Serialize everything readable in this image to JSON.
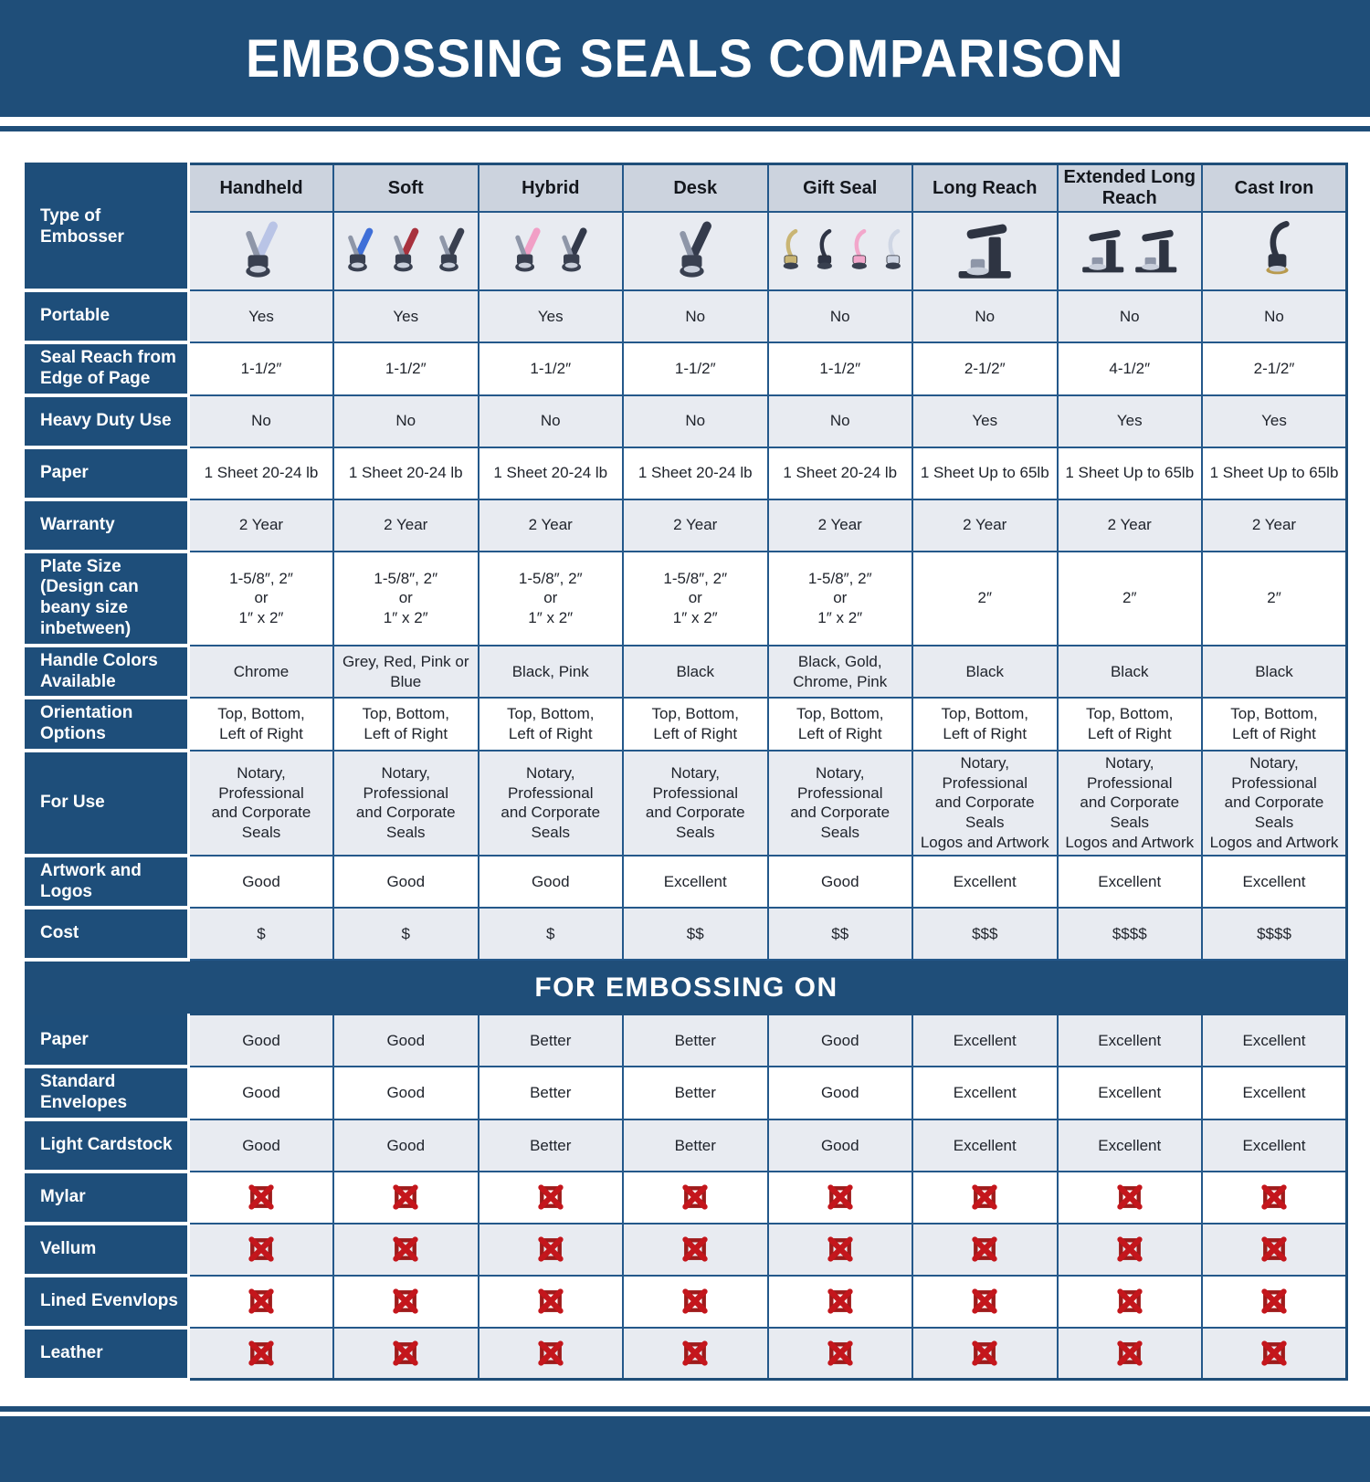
{
  "title": "EMBOSSING SEALS COMPARISON",
  "colors": {
    "dark_blue": "#1f4e79",
    "light_row": "#e8ebf1",
    "header_gray": "#ccd3de",
    "x_red": "#c4161c",
    "x_dark_red": "#9e1b1b"
  },
  "chart_data": {
    "type": "table",
    "title": "EMBOSSING SEALS COMPARISON",
    "corner_label": "Type of Embosser",
    "banner": "FOR EMBOSSING ON",
    "x_icon_name": "red-x-icon",
    "columns": [
      {
        "name": "Handheld",
        "shape": "plier",
        "variants": [
          "#b9c4e6"
        ]
      },
      {
        "name": "Soft",
        "shape": "plier",
        "variants": [
          "#3f6fd8",
          "#a8323e",
          "#3a4050"
        ]
      },
      {
        "name": "Hybrid",
        "shape": "plier",
        "variants": [
          "#f19fc6",
          "#32394a"
        ]
      },
      {
        "name": "Desk",
        "shape": "plier",
        "variants": [
          "#343b4c"
        ]
      },
      {
        "name": "Gift Seal",
        "shape": "seal",
        "variants": [
          "#c9b574",
          "#2f3546",
          "#f2a7cb",
          "#cfd6e4"
        ]
      },
      {
        "name": "Long Reach",
        "shape": "press",
        "variants": [
          "#2e3442"
        ]
      },
      {
        "name": "Extended Long Reach",
        "shape": "press",
        "variants": [
          "#2e3442",
          "#2e3442"
        ]
      },
      {
        "name": "Cast Iron",
        "shape": "iron",
        "variants": [
          "#2e3442"
        ]
      }
    ],
    "spec_rows": [
      {
        "label": "Portable",
        "values": [
          "Yes",
          "Yes",
          "Yes",
          "No",
          "No",
          "No",
          "No",
          "No"
        ]
      },
      {
        "label": "Seal Reach from Edge of Page",
        "values": [
          "1-1/2″",
          "1-1/2″",
          "1-1/2″",
          "1-1/2″",
          "1-1/2″",
          "2-1/2″",
          "4-1/2″",
          "2-1/2″"
        ]
      },
      {
        "label": "Heavy Duty Use",
        "values": [
          "No",
          "No",
          "No",
          "No",
          "No",
          "Yes",
          "Yes",
          "Yes"
        ]
      },
      {
        "label": "Paper",
        "values": [
          "1 Sheet 20-24 lb",
          "1 Sheet 20-24 lb",
          "1 Sheet 20-24 lb",
          "1 Sheet 20-24 lb",
          "1 Sheet 20-24 lb",
          "1 Sheet Up to 65lb",
          "1 Sheet Up to 65lb",
          "1 Sheet Up to 65lb"
        ]
      },
      {
        "label": "Warranty",
        "values": [
          "2 Year",
          "2 Year",
          "2 Year",
          "2 Year",
          "2 Year",
          "2 Year",
          "2 Year",
          "2 Year"
        ]
      },
      {
        "label": "Plate Size (Design can beany size inbetween)",
        "values": [
          "1-5/8″, 2″\nor\n1″ x 2″",
          "1-5/8″, 2″\nor\n1″ x 2″",
          "1-5/8″, 2″\nor\n1″ x 2″",
          "1-5/8″, 2″\nor\n1″ x 2″",
          "1-5/8″, 2″\nor\n1″ x 2″",
          "2″",
          "2″",
          "2″"
        ]
      },
      {
        "label": "Handle Colors Available",
        "values": [
          "Chrome",
          "Grey, Red, Pink or Blue",
          "Black, Pink",
          "Black",
          "Black, Gold, Chrome, Pink",
          "Black",
          "Black",
          "Black"
        ]
      },
      {
        "label": "Orientation Options",
        "values": [
          "Top, Bottom,\nLeft of Right",
          "Top, Bottom,\nLeft of Right",
          "Top, Bottom,\nLeft of Right",
          "Top, Bottom,\nLeft of Right",
          "Top, Bottom,\nLeft of Right",
          "Top, Bottom,\nLeft of Right",
          "Top, Bottom,\nLeft of Right",
          "Top, Bottom,\nLeft of Right"
        ]
      },
      {
        "label": "For Use",
        "values": [
          "Notary, Professional\nand Corporate Seals",
          "Notary, Professional\nand Corporate Seals",
          "Notary, Professional\nand Corporate Seals",
          "Notary, Professional\nand Corporate Seals",
          "Notary, Professional\nand Corporate Seals",
          "Notary, Professional\nand Corporate Seals\nLogos and Artwork",
          "Notary, Professional\nand Corporate Seals\nLogos and Artwork",
          "Notary, Professional\nand Corporate Seals\nLogos and Artwork"
        ]
      },
      {
        "label": "Artwork and Logos",
        "values": [
          "Good",
          "Good",
          "Good",
          "Excellent",
          "Good",
          "Excellent",
          "Excellent",
          "Excellent"
        ]
      },
      {
        "label": "Cost",
        "values": [
          "$",
          "$",
          "$",
          "$$",
          "$$",
          "$$$",
          "$$$$",
          "$$$$"
        ]
      }
    ],
    "embossing_rows": [
      {
        "label": "Paper",
        "type": "text",
        "values": [
          "Good",
          "Good",
          "Better",
          "Better",
          "Good",
          "Excellent",
          "Excellent",
          "Excellent"
        ]
      },
      {
        "label": "Standard Envelopes",
        "type": "text",
        "values": [
          "Good",
          "Good",
          "Better",
          "Better",
          "Good",
          "Excellent",
          "Excellent",
          "Excellent"
        ]
      },
      {
        "label": "Light Cardstock",
        "type": "text",
        "values": [
          "Good",
          "Good",
          "Better",
          "Better",
          "Good",
          "Excellent",
          "Excellent",
          "Excellent"
        ]
      },
      {
        "label": "Mylar",
        "type": "icon",
        "icon": "red-x-icon"
      },
      {
        "label": "Vellum",
        "type": "icon",
        "icon": "red-x-icon"
      },
      {
        "label": "Lined Evenvlops",
        "type": "icon",
        "icon": "red-x-icon"
      },
      {
        "label": "Leather",
        "type": "icon",
        "icon": "red-x-icon"
      }
    ]
  }
}
